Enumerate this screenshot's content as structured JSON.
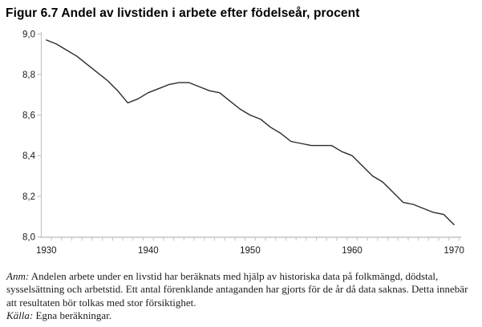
{
  "figure": {
    "title": "Figur 6.7 Andel av livstiden i arbete efter födelseår, procent"
  },
  "chart_data": {
    "type": "line",
    "title": "Figur 6.7 Andel av livstiden i arbete efter födelseår, procent",
    "xlabel": "",
    "ylabel": "",
    "xlim": [
      1930,
      1970
    ],
    "ylim": [
      8.0,
      9.0
    ],
    "grid": false,
    "legend_position": "none",
    "x_ticks": {
      "values": [
        1930,
        1940,
        1950,
        1960,
        1970
      ],
      "labels": [
        "1930",
        "1940",
        "1950",
        "1960",
        "1970"
      ],
      "minor_interval_years": 1
    },
    "y_ticks": {
      "values": [
        8.0,
        8.2,
        8.4,
        8.6,
        8.8,
        9.0
      ],
      "labels": [
        "8,0",
        "8,2",
        "8,4",
        "8,6",
        "8,8",
        "9,0"
      ]
    },
    "series": [
      {
        "name": "Andel av livstiden i arbete, procent",
        "x": [
          1930,
          1931,
          1932,
          1933,
          1934,
          1935,
          1936,
          1937,
          1938,
          1939,
          1940,
          1941,
          1942,
          1943,
          1944,
          1945,
          1946,
          1947,
          1948,
          1949,
          1950,
          1951,
          1952,
          1953,
          1954,
          1955,
          1956,
          1957,
          1958,
          1959,
          1960,
          1961,
          1962,
          1963,
          1964,
          1965,
          1966,
          1967,
          1968,
          1969,
          1970
        ],
        "values": [
          8.97,
          8.95,
          8.92,
          8.89,
          8.85,
          8.81,
          8.77,
          8.72,
          8.66,
          8.68,
          8.71,
          8.73,
          8.75,
          8.76,
          8.76,
          8.74,
          8.72,
          8.71,
          8.67,
          8.63,
          8.6,
          8.58,
          8.54,
          8.51,
          8.47,
          8.46,
          8.45,
          8.45,
          8.45,
          8.42,
          8.4,
          8.35,
          8.3,
          8.27,
          8.22,
          8.17,
          8.16,
          8.14,
          8.12,
          8.11,
          8.06
        ]
      }
    ],
    "colors": {
      "line": "#2b2b2b",
      "axis": "#c6c6c6",
      "tick_text": "#1a1a1a"
    }
  },
  "notes": {
    "anm_label": "Anm:",
    "anm_text": "Andelen arbete under en livstid har beräknats med hjälp av historiska data på folkmängd, dödstal, sysselsättning och arbetstid. Ett antal förenklande antaganden har gjorts för de år då data saknas. Detta innebär att resultaten bör tolkas med stor försiktighet.",
    "source_label": "Källa:",
    "source_text": "Egna beräkningar."
  }
}
